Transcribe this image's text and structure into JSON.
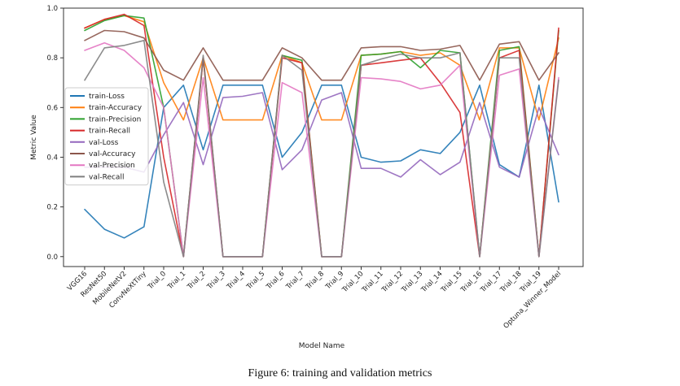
{
  "caption": "Figure 6: training and validation metrics",
  "chart_data": {
    "type": "line",
    "xlabel": "Model Name",
    "ylabel": "Metric Value",
    "ylim": [
      -0.04,
      1.0
    ],
    "yticks": [
      "0.0",
      "0.2",
      "0.4",
      "0.6",
      "0.8",
      "1.0"
    ],
    "grid": false,
    "legend_position": "center-left",
    "categories": [
      "VGG16",
      "ResNet50",
      "MobileNetV2",
      "ConvNeXtTiny",
      "Trial_0",
      "Trial_1",
      "Trial_2",
      "Trial_3",
      "Trial_4",
      "Trial_5",
      "Trial_6",
      "Trial_7",
      "Trial_8",
      "Trial_9",
      "Trial_10",
      "Trial_11",
      "Trial_12",
      "Trial_13",
      "Trial_14",
      "Trial_15",
      "Trial_16",
      "Trial_17",
      "Trial_18",
      "Trial_19",
      "Optuna_Winner_Model"
    ],
    "series": [
      {
        "name": "train-Loss",
        "color": "#1f77b4",
        "values": [
          0.19,
          0.11,
          0.075,
          0.12,
          0.6,
          0.69,
          0.43,
          0.69,
          0.69,
          0.69,
          0.4,
          0.5,
          0.69,
          0.69,
          0.4,
          0.38,
          0.385,
          0.43,
          0.415,
          0.5,
          0.69,
          0.37,
          0.32,
          0.69,
          0.22
        ]
      },
      {
        "name": "train-Accuracy",
        "color": "#ff7f0e",
        "values": [
          0.92,
          0.955,
          0.97,
          0.945,
          0.7,
          0.55,
          0.8,
          0.55,
          0.55,
          0.55,
          0.81,
          0.78,
          0.55,
          0.55,
          0.81,
          0.815,
          0.825,
          0.81,
          0.82,
          0.77,
          0.55,
          0.84,
          0.84,
          0.55,
          0.88
        ]
      },
      {
        "name": "train-Precision",
        "color": "#2ca02c",
        "values": [
          0.91,
          0.95,
          0.97,
          0.96,
          0.6,
          0.0,
          0.8,
          0.0,
          0.0,
          0.0,
          0.81,
          0.79,
          0.0,
          0.0,
          0.81,
          0.815,
          0.825,
          0.76,
          0.83,
          0.82,
          0.0,
          0.83,
          0.845,
          0.0,
          0.91
        ]
      },
      {
        "name": "train-Recall",
        "color": "#d62728",
        "values": [
          0.92,
          0.955,
          0.975,
          0.93,
          0.4,
          0.0,
          0.8,
          0.0,
          0.0,
          0.0,
          0.8,
          0.78,
          0.0,
          0.0,
          0.77,
          0.78,
          0.79,
          0.8,
          0.7,
          0.58,
          0.0,
          0.8,
          0.83,
          0.0,
          0.92
        ]
      },
      {
        "name": "val-Loss",
        "color": "#9467bd",
        "values": [
          0.36,
          0.36,
          0.36,
          0.34,
          0.49,
          0.62,
          0.37,
          0.64,
          0.645,
          0.66,
          0.35,
          0.43,
          0.63,
          0.66,
          0.355,
          0.355,
          0.32,
          0.39,
          0.33,
          0.38,
          0.62,
          0.36,
          0.32,
          0.6,
          0.41
        ]
      },
      {
        "name": "val-Accuracy",
        "color": "#8c564b",
        "values": [
          0.87,
          0.91,
          0.905,
          0.88,
          0.75,
          0.71,
          0.84,
          0.71,
          0.71,
          0.71,
          0.84,
          0.8,
          0.71,
          0.71,
          0.84,
          0.845,
          0.845,
          0.83,
          0.835,
          0.85,
          0.71,
          0.855,
          0.865,
          0.71,
          0.82
        ]
      },
      {
        "name": "val-Precision",
        "color": "#e377c2",
        "values": [
          0.83,
          0.86,
          0.83,
          0.76,
          0.6,
          0.0,
          0.72,
          0.0,
          0.0,
          0.0,
          0.7,
          0.66,
          0.0,
          0.0,
          0.72,
          0.715,
          0.705,
          0.675,
          0.69,
          0.77,
          0.0,
          0.73,
          0.755,
          0.0,
          0.72
        ]
      },
      {
        "name": "val-Recall",
        "color": "#7f7f7f",
        "values": [
          0.71,
          0.84,
          0.85,
          0.87,
          0.3,
          0.0,
          0.81,
          0.0,
          0.0,
          0.0,
          0.81,
          0.75,
          0.0,
          0.0,
          0.77,
          0.795,
          0.815,
          0.8,
          0.8,
          0.82,
          0.0,
          0.8,
          0.8,
          0.0,
          0.71
        ]
      }
    ]
  }
}
